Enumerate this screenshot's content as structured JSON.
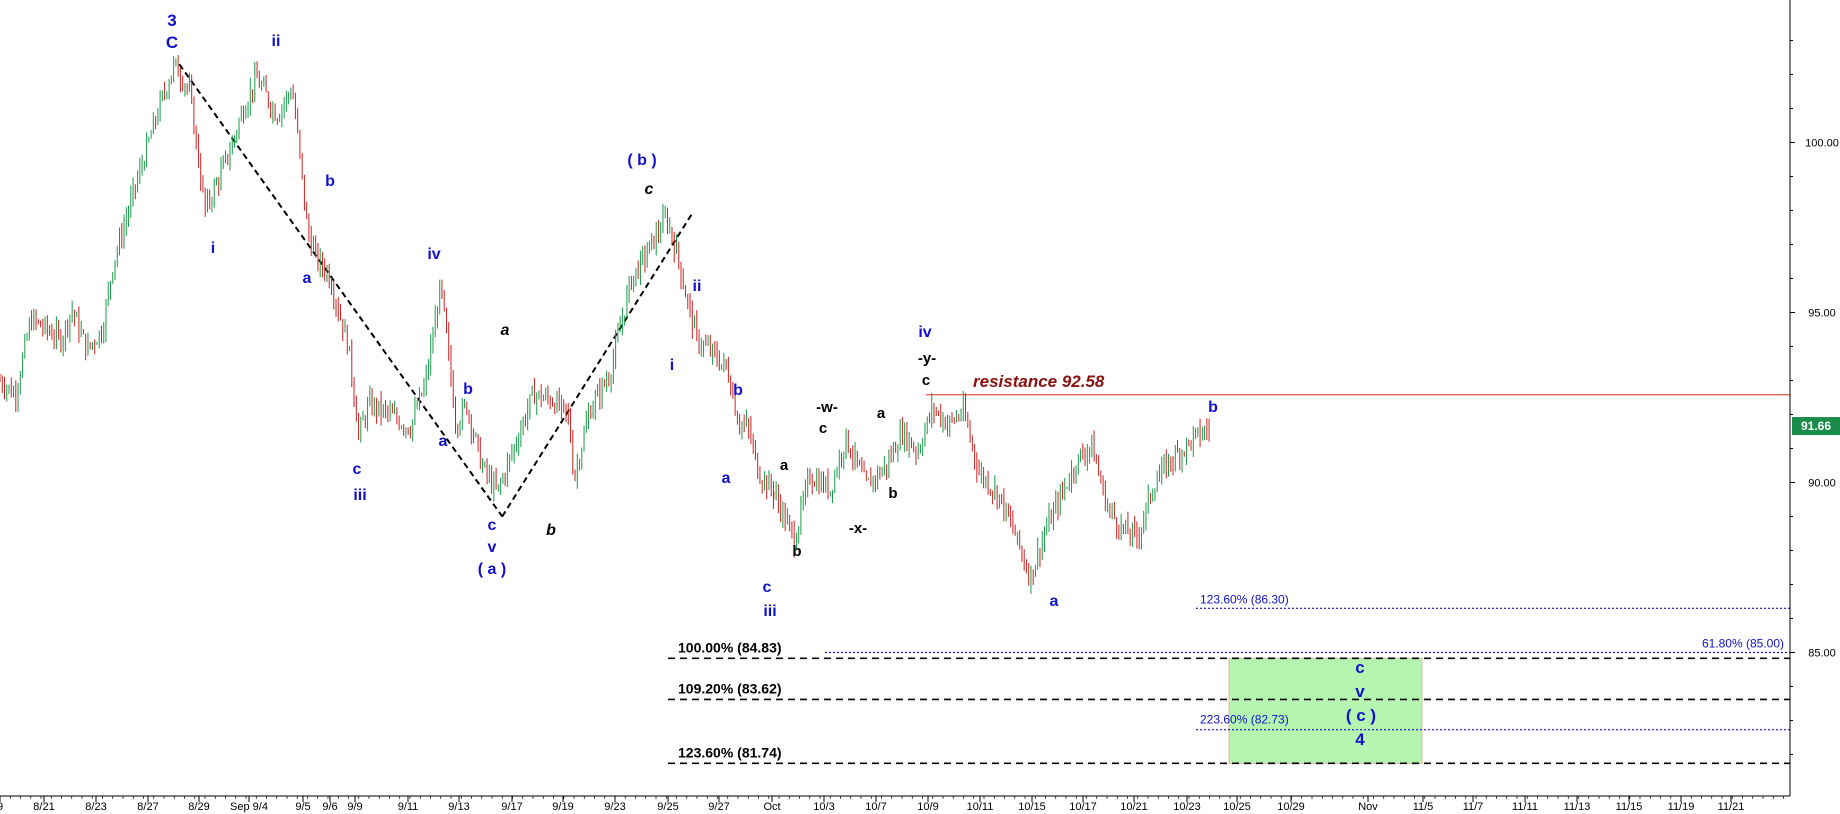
{
  "chart_data": {
    "type": "candlestick",
    "title": "",
    "y_axis": {
      "ticks": [
        85.0,
        90.0,
        95.0,
        100.0
      ],
      "tick_labels": [
        "85.00",
        "90.00",
        "95.00",
        "100.00"
      ],
      "range": [
        81.0,
        104.0
      ]
    },
    "x_axis": {
      "tick_labels": [
        "9",
        "8/21",
        "8/23",
        "8/27",
        "8/29",
        "Sep 9/4",
        "9/5",
        "9/6",
        "9/9",
        "9/11",
        "9/13",
        "9/17",
        "9/19",
        "9/23",
        "9/25",
        "9/27",
        "Oct",
        "10/3",
        "10/7",
        "10/9",
        "10/11",
        "10/15",
        "10/17",
        "10/21",
        "10/23",
        "10/25",
        "10/29",
        "Nov",
        "11/5",
        "11/7",
        "11/11",
        "11/13",
        "11/15",
        "11/19",
        "11/21"
      ],
      "range_days": [
        0,
        108
      ]
    },
    "price_path": [
      [
        0,
        93.0
      ],
      [
        1.5,
        92.6
      ],
      [
        3,
        94.8
      ],
      [
        6,
        94.2
      ],
      [
        7,
        95.1
      ],
      [
        8.5,
        93.9
      ],
      [
        10,
        94.5
      ],
      [
        11,
        96.4
      ],
      [
        13,
        98.5
      ],
      [
        14,
        99.5
      ],
      [
        15.5,
        101.0
      ],
      [
        17,
        102.3
      ],
      [
        18.5,
        101.5
      ],
      [
        20,
        98.0
      ],
      [
        21,
        98.7
      ],
      [
        22.5,
        99.8
      ],
      [
        23.5,
        100.8
      ],
      [
        25,
        101.9
      ],
      [
        27,
        100.8
      ],
      [
        28.5,
        101.6
      ],
      [
        29,
        100.3
      ],
      [
        30,
        97.4
      ],
      [
        31,
        96.5
      ],
      [
        32,
        96.2
      ],
      [
        34,
        94.0
      ],
      [
        35,
        91.4
      ],
      [
        36,
        92.3
      ],
      [
        38,
        92.0
      ],
      [
        40,
        91.6
      ],
      [
        41.5,
        92.9
      ],
      [
        43,
        95.8
      ],
      [
        44.5,
        91.7
      ],
      [
        45.5,
        92.3
      ],
      [
        47,
        90.5
      ],
      [
        48.5,
        89.7
      ],
      [
        50,
        90.9
      ],
      [
        52,
        92.6
      ],
      [
        54,
        92.4
      ],
      [
        55.5,
        91.9
      ],
      [
        56,
        90.1
      ],
      [
        57.5,
        92.1
      ],
      [
        59.5,
        93.2
      ],
      [
        61.5,
        95.9
      ],
      [
        63,
        96.7
      ],
      [
        65,
        97.8
      ],
      [
        66,
        96.8
      ],
      [
        67,
        95.4
      ],
      [
        68,
        94.2
      ],
      [
        69.5,
        93.8
      ],
      [
        71,
        93.3
      ],
      [
        72,
        91.8
      ],
      [
        73,
        91.6
      ],
      [
        74,
        90.3
      ],
      [
        75.5,
        89.7
      ]
    ],
    "price_path_tail": [
      [
        75.5,
        89.7
      ],
      [
        77.5,
        88.3
      ],
      [
        79,
        90.2
      ],
      [
        81,
        89.8
      ],
      [
        82.5,
        91.3
      ],
      [
        84.5,
        89.9
      ],
      [
        86.5,
        90.5
      ],
      [
        88,
        91.5
      ],
      [
        89.5,
        90.9
      ],
      [
        91,
        92.2
      ],
      [
        92.5,
        91.7
      ],
      [
        94,
        92.1
      ],
      [
        95.5,
        90.3
      ],
      [
        97.5,
        89.6
      ],
      [
        99,
        88.5
      ],
      [
        100.5,
        87.2
      ],
      [
        102,
        88.6
      ],
      [
        103.5,
        89.6
      ],
      [
        105,
        90.6
      ],
      [
        106.5,
        91.1
      ],
      [
        108,
        89.3
      ],
      [
        109.5,
        88.6
      ],
      [
        111,
        88.4
      ],
      [
        112.5,
        89.9
      ],
      [
        114,
        90.6
      ],
      [
        115.5,
        91.0
      ],
      [
        116.5,
        91.3
      ],
      [
        118,
        91.6
      ]
    ],
    "trend_lines": [
      {
        "from": [
          17.5,
          102.3
        ],
        "to": [
          49,
          89.0
        ]
      },
      {
        "from": [
          49,
          89.0
        ],
        "to": [
          67.5,
          97.9
        ]
      }
    ],
    "horizontal_levels": [
      {
        "price": 92.58,
        "label": "resistance 92.58",
        "style": "solid",
        "color": "#e05050"
      },
      {
        "price": 86.3,
        "label": "123.60% (86.30)",
        "style": "dotted",
        "color": "#1111cc"
      },
      {
        "price": 85.0,
        "label": "61.80% (85.00)",
        "style": "dotted",
        "color": "#1111cc"
      },
      {
        "price": 84.83,
        "label": "100.00% (84.83)",
        "style": "dashed",
        "color": "#000000"
      },
      {
        "price": 83.62,
        "label": "109.20% (83.62)",
        "style": "dashed",
        "color": "#000000"
      },
      {
        "price": 82.73,
        "label": "223.60% (82.73)",
        "style": "dotted",
        "color": "#1111cc"
      },
      {
        "price": 81.74,
        "label": "123.60% (81.74)",
        "style": "dashed",
        "color": "#000000"
      }
    ],
    "target_zone": {
      "price_top": 84.83,
      "price_bottom": 81.74,
      "color": "#b4f5b0"
    },
    "last_price": {
      "value": 91.66,
      "label": "91.66",
      "color": "#1a8c4a"
    },
    "wave_labels": [
      {
        "text": "3",
        "color": "#1111cc",
        "size": 17
      },
      {
        "text": "C",
        "color": "#1111cc",
        "size": 17
      },
      {
        "text": "ii",
        "color": "#1111cc",
        "size": 16
      },
      {
        "text": "i",
        "color": "#1111cc",
        "size": 16
      },
      {
        "text": "b",
        "color": "#1111cc",
        "size": 16
      },
      {
        "text": "a",
        "color": "#1111cc",
        "size": 16
      },
      {
        "text": "iv",
        "color": "#1111cc",
        "size": 16
      },
      {
        "text": "b",
        "color": "#1111cc",
        "size": 16
      },
      {
        "text": "c",
        "color": "#1111cc",
        "size": 16
      },
      {
        "text": "iii",
        "color": "#1111cc",
        "size": 16
      },
      {
        "text": "a",
        "color": "#1111cc",
        "size": 16
      },
      {
        "text": "a",
        "color": "#000000",
        "size": 16,
        "italic": true
      },
      {
        "text": "c",
        "color": "#1111cc",
        "size": 16
      },
      {
        "text": "v",
        "color": "#1111cc",
        "size": 16
      },
      {
        "text": "( a )",
        "color": "#1111cc",
        "size": 16
      },
      {
        "text": "b",
        "color": "#000000",
        "size": 16,
        "italic": true
      },
      {
        "text": "( b )",
        "color": "#1111cc",
        "size": 16
      },
      {
        "text": "c",
        "color": "#000000",
        "size": 16,
        "italic": true
      },
      {
        "text": "ii",
        "color": "#1111cc",
        "size": 16
      },
      {
        "text": "i",
        "color": "#1111cc",
        "size": 16
      },
      {
        "text": "b",
        "color": "#1111cc",
        "size": 16
      },
      {
        "text": "a",
        "color": "#1111cc",
        "size": 16
      },
      {
        "text": "c",
        "color": "#1111cc",
        "size": 16
      },
      {
        "text": "iii",
        "color": "#1111cc",
        "size": 16
      },
      {
        "text": "a",
        "color": "#000000",
        "size": 15
      },
      {
        "text": "b",
        "color": "#000000",
        "size": 15
      },
      {
        "text": "-w-",
        "color": "#000000",
        "size": 15
      },
      {
        "text": "c",
        "color": "#000000",
        "size": 15
      },
      {
        "text": "a",
        "color": "#000000",
        "size": 15
      },
      {
        "text": "-x-",
        "color": "#000000",
        "size": 15
      },
      {
        "text": "b",
        "color": "#000000",
        "size": 15
      },
      {
        "text": "iv",
        "color": "#1111cc",
        "size": 16
      },
      {
        "text": "-y-",
        "color": "#000000",
        "size": 15
      },
      {
        "text": "c",
        "color": "#000000",
        "size": 15
      },
      {
        "text": "a",
        "color": "#1111cc",
        "size": 16
      },
      {
        "text": "b",
        "color": "#1111cc",
        "size": 16
      },
      {
        "text": "c",
        "color": "#1111cc",
        "size": 17
      },
      {
        "text": "v",
        "color": "#1111cc",
        "size": 17
      },
      {
        "text": "( c )",
        "color": "#1111cc",
        "size": 17
      },
      {
        "text": "4",
        "color": "#1111cc",
        "size": 17
      }
    ]
  }
}
